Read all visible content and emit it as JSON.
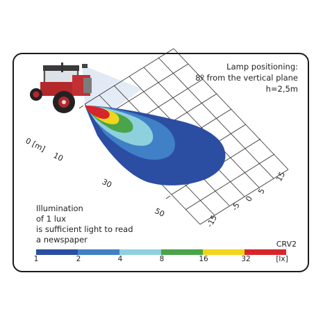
{
  "lamp_info": {
    "line1": "Lamp positioning:",
    "line2": "8º from the vertical plane",
    "line3": "h=2,5m"
  },
  "illumination_note": {
    "line1": "Illumination",
    "line2": "of 1 lux",
    "line3": "is sufficient light to read",
    "line4": "a newspaper"
  },
  "model_code": "CRV2",
  "distance_axis": {
    "labels": [
      "0 [m]",
      "10",
      "30",
      "50"
    ]
  },
  "lateral_axis": {
    "labels": [
      "15",
      "5",
      "0",
      "-5",
      "-15"
    ]
  },
  "color_scale": {
    "colors": [
      "#2b4ea2",
      "#3f80c6",
      "#8fd0dd",
      "#4aa44a",
      "#f2d51c",
      "#d6262b"
    ],
    "labels": [
      "1",
      "2",
      "4",
      "8",
      "16",
      "32",
      "[lx]"
    ]
  }
}
